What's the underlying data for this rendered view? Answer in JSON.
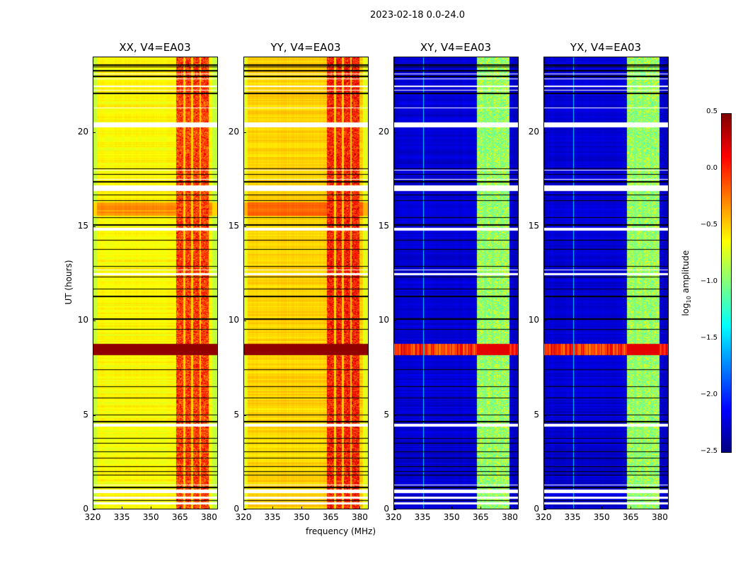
{
  "chart_data": {
    "type": "heatmap",
    "suptitle": "2023-02-18 0.0-24.0",
    "xlabel": "frequency (MHz)",
    "ylabel": "UT (hours)",
    "xlim": [
      320,
      384.6
    ],
    "ylim": [
      0,
      24
    ],
    "xticks": [
      "320",
      "335",
      "350",
      "365",
      "380"
    ],
    "xtick_values": [
      320,
      335,
      350,
      365,
      380
    ],
    "yticks": [
      "0",
      "5",
      "10",
      "15",
      "20"
    ],
    "ytick_values": [
      0,
      5,
      10,
      15,
      20
    ],
    "colorbar": {
      "label": "log10 amplitude",
      "label_main": "log",
      "label_sub": "10",
      "label_rest": " amplitude",
      "range": [
        -2.5,
        0.5
      ],
      "ticks": [
        "0.5",
        "0.0",
        "−0.5",
        "−1.0",
        "−1.5",
        "−2.0",
        "−2.5"
      ],
      "tick_values": [
        0.5,
        0.0,
        -0.5,
        -1.0,
        -1.5,
        -2.0,
        -2.5
      ],
      "colormap": "jet"
    },
    "panels": [
      {
        "title": "XX, V4=EA03",
        "base": -0.62,
        "rfi": -0.05,
        "edge": -0.8,
        "bright_band": 0.45
      },
      {
        "title": "YY, V4=EA03",
        "base": -0.5,
        "rfi": 0.05,
        "edge": -0.7,
        "bright_band": 0.45
      },
      {
        "title": "XY, V4=EA03",
        "base": -2.25,
        "rfi": -0.9,
        "edge": -2.3,
        "bright_band": 0.1
      },
      {
        "title": "YX, V4=EA03",
        "base": -2.25,
        "rfi": -0.9,
        "edge": -2.3,
        "bright_band": 0.1
      }
    ],
    "rfi_band_mhz": [
      363,
      380
    ],
    "channel_gaps_mhz": [
      367.2,
      371.3,
      375.5
    ],
    "bright_band_hours": [
      8.2,
      8.8
    ],
    "elevated_band_hours": [
      15.6,
      16.3
    ],
    "flagged_white_hours": [
      [
        0.25,
        0.35
      ],
      [
        0.55,
        0.65
      ],
      [
        0.85,
        1.05
      ],
      [
        1.25,
        1.3
      ],
      [
        4.4,
        4.55
      ],
      [
        12.45,
        12.55
      ],
      [
        12.7,
        12.75
      ],
      [
        14.8,
        14.95
      ],
      [
        16.9,
        17.2
      ],
      [
        17.5,
        17.55
      ],
      [
        18.0,
        18.05
      ],
      [
        20.3,
        20.55
      ],
      [
        21.3,
        21.35
      ],
      [
        22.25,
        22.3
      ],
      [
        22.45,
        22.5
      ],
      [
        22.85,
        22.9
      ],
      [
        23.1,
        23.15
      ]
    ],
    "flagged_black_hours": [
      0.45,
      1.15,
      1.8,
      2.0,
      2.25,
      2.7,
      3.05,
      3.5,
      3.75,
      4.65,
      5.0,
      5.9,
      6.5,
      7.4,
      9.55,
      10.1,
      11.3,
      11.7,
      12.35,
      12.9,
      13.8,
      14.3,
      15.1,
      15.5,
      16.4,
      16.7,
      17.4,
      17.8,
      18.1,
      22.1,
      23.0,
      23.3,
      23.5,
      23.6
    ]
  }
}
